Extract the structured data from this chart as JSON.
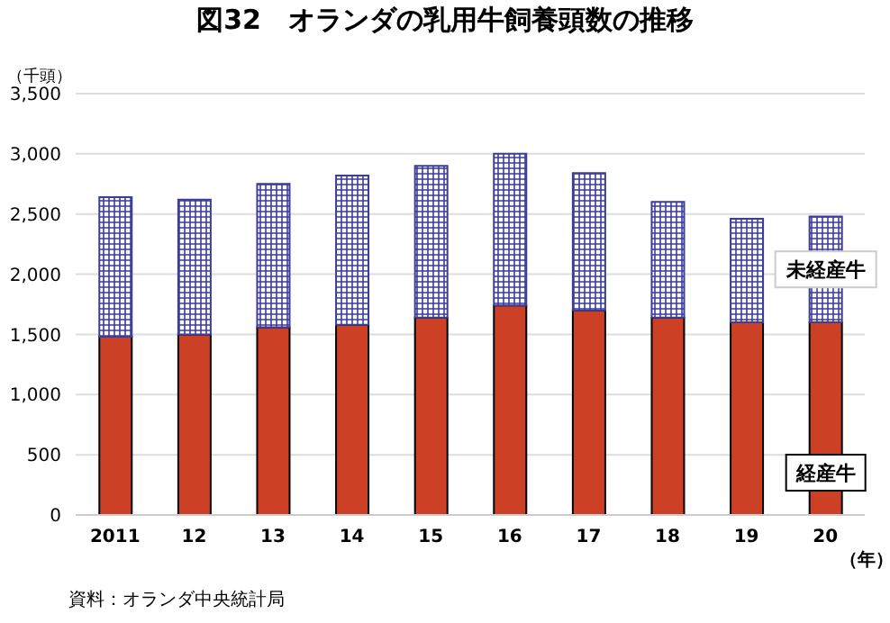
{
  "chart_data": {
    "type": "bar",
    "title": "図32　オランダの乳用牛飼養頭数の推移",
    "ylabel": "（千頭）",
    "xlabel": "（年）",
    "categories": [
      "2011",
      "12",
      "13",
      "14",
      "15",
      "16",
      "17",
      "18",
      "19",
      "20"
    ],
    "stacked": true,
    "series": [
      {
        "name": "経産牛",
        "color": "#cc4125",
        "values": [
          1480,
          1500,
          1560,
          1580,
          1640,
          1740,
          1700,
          1640,
          1600,
          1600
        ]
      },
      {
        "name": "未経産牛",
        "color": "#3c3c9a",
        "values": [
          1160,
          1120,
          1190,
          1240,
          1260,
          1260,
          1140,
          960,
          860,
          880
        ]
      }
    ],
    "ylim": [
      0,
      3500
    ],
    "yticks": [
      {
        "value": 0,
        "label": "0"
      },
      {
        "value": 500,
        "label": "500"
      },
      {
        "value": 1000,
        "label": "1,000"
      },
      {
        "value": 1500,
        "label": "1,500"
      },
      {
        "value": 2000,
        "label": "2,000"
      },
      {
        "value": 2500,
        "label": "2,500"
      },
      {
        "value": 3000,
        "label": "3,000"
      },
      {
        "value": 3500,
        "label": "3,500"
      }
    ],
    "grid": "y",
    "legend": false,
    "annotations": [
      "資料：オランダ中央統計局"
    ]
  }
}
